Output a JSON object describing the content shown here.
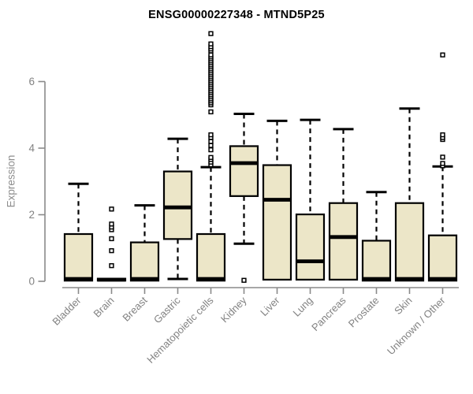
{
  "title": "ENSG00000227348 - MTND5P25",
  "colors": {
    "background": "#ffffff",
    "box_fill": "#ece6c8",
    "box_stroke": "#000000",
    "median": "#000000",
    "whisker": "#000000",
    "outlier_fill": "#ffffff",
    "axis": "#8a8a8a",
    "axis_text": "#828282",
    "title_text": "#000000"
  },
  "chart_data": {
    "type": "boxplot",
    "title": "ENSG00000227348 - MTND5P25",
    "xlabel": "",
    "ylabel": "Expression",
    "ylim": [
      0,
      7.6
    ],
    "yticks": [
      0,
      2,
      4,
      6
    ],
    "grid": false,
    "legend": false,
    "categories": [
      "Bladder",
      "Brain",
      "Breast",
      "Gastric",
      "Hematopoietic cells",
      "Kidney",
      "Liver",
      "Lung",
      "Pancreas",
      "Prostate",
      "Skin",
      "Unknown / Other"
    ],
    "series": [
      {
        "name": "Bladder",
        "whisker_low": 0.02,
        "q1": 0.02,
        "median": 0.07,
        "q3": 1.42,
        "whisker_high": 2.93,
        "outliers": []
      },
      {
        "name": "Brain",
        "whisker_low": 0.02,
        "q1": 0.02,
        "median": 0.05,
        "q3": 0.08,
        "whisker_high": 0.08,
        "outliers": [
          0.47,
          0.92,
          1.28,
          1.55,
          1.63,
          1.72,
          2.17
        ]
      },
      {
        "name": "Breast",
        "whisker_low": 0.02,
        "q1": 0.02,
        "median": 0.07,
        "q3": 1.17,
        "whisker_high": 2.28,
        "outliers": []
      },
      {
        "name": "Gastric",
        "whisker_low": 0.07,
        "q1": 1.27,
        "median": 2.22,
        "q3": 3.3,
        "whisker_high": 4.28,
        "outliers": []
      },
      {
        "name": "Hematopoietic cells",
        "whisker_low": 0.02,
        "q1": 0.02,
        "median": 0.07,
        "q3": 1.42,
        "whisker_high": 3.43,
        "outliers": [
          3.5,
          3.58,
          3.66,
          3.72,
          3.95,
          4.08,
          4.2,
          4.32,
          4.4,
          5.09,
          5.3,
          5.36,
          5.42,
          5.48,
          5.54,
          5.6,
          5.66,
          5.72,
          5.78,
          5.84,
          5.9,
          5.96,
          6.02,
          6.08,
          6.14,
          6.2,
          6.26,
          6.32,
          6.38,
          6.44,
          6.5,
          6.56,
          6.62,
          6.68,
          6.74,
          6.8,
          6.92,
          6.98,
          7.05,
          7.13,
          7.44
        ]
      },
      {
        "name": "Kidney",
        "whisker_low": 1.13,
        "q1": 2.56,
        "median": 3.55,
        "q3": 4.06,
        "whisker_high": 5.03,
        "outliers": [
          0.03
        ]
      },
      {
        "name": "Liver",
        "whisker_low": 0.05,
        "q1": 0.05,
        "median": 2.45,
        "q3": 3.49,
        "whisker_high": 4.82,
        "outliers": []
      },
      {
        "name": "Lung",
        "whisker_low": 0.05,
        "q1": 0.05,
        "median": 0.6,
        "q3": 2.01,
        "whisker_high": 4.85,
        "outliers": []
      },
      {
        "name": "Pancreas",
        "whisker_low": 0.05,
        "q1": 0.05,
        "median": 1.33,
        "q3": 2.35,
        "whisker_high": 4.57,
        "outliers": []
      },
      {
        "name": "Prostate",
        "whisker_low": 0.02,
        "q1": 0.02,
        "median": 0.07,
        "q3": 1.22,
        "whisker_high": 2.68,
        "outliers": []
      },
      {
        "name": "Skin",
        "whisker_low": 0.02,
        "q1": 0.02,
        "median": 0.07,
        "q3": 2.35,
        "whisker_high": 5.19,
        "outliers": []
      },
      {
        "name": "Unknown / Other",
        "whisker_low": 0.02,
        "q1": 0.02,
        "median": 0.07,
        "q3": 1.38,
        "whisker_high": 3.45,
        "outliers": [
          3.47,
          3.54,
          3.73,
          4.26,
          4.32,
          4.4,
          6.8
        ]
      }
    ]
  }
}
